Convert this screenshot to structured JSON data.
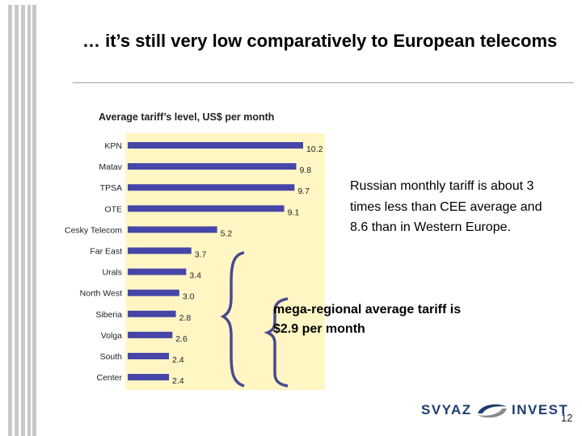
{
  "slide": {
    "title": "… it’s still very low comparatively to European telecoms",
    "note": "Russian monthly tariff is about 3 times less than CEE average and 8.6 than in Western  Europe.",
    "bracket_label": "mega-regional average tariff is $2.9 per month",
    "page_number": "12"
  },
  "logo": {
    "left_text": "SVYAZ",
    "right_text": "INVEST"
  },
  "colors": {
    "plot_bg": "#fff6c4",
    "bar": "#4646a8",
    "bracket": "#4a4a90",
    "stripe": "#c8c8c8"
  },
  "chart_data": {
    "type": "bar",
    "orientation": "horizontal",
    "title": "Average tariff’s level, US$ per month",
    "categories": [
      "KPN",
      "Matav",
      "TPSA",
      "OTE",
      "Cesky Telecom",
      "Far East",
      "Urals",
      "North West",
      "Siberia",
      "Volga",
      "South",
      "Center"
    ],
    "values": [
      10.2,
      9.8,
      9.7,
      9.1,
      5.2,
      3.7,
      3.4,
      3.0,
      2.8,
      2.6,
      2.4,
      2.4
    ],
    "value_labels": [
      "10.2",
      "9.8",
      "9.7",
      "9.1",
      "5.2",
      "3.7",
      "3.4",
      "3.0",
      "2.8",
      "2.6",
      "2.4",
      "2.4"
    ],
    "xlim": [
      0,
      11
    ],
    "xlabel": "",
    "ylabel": "",
    "grid": false,
    "legend": "none"
  }
}
